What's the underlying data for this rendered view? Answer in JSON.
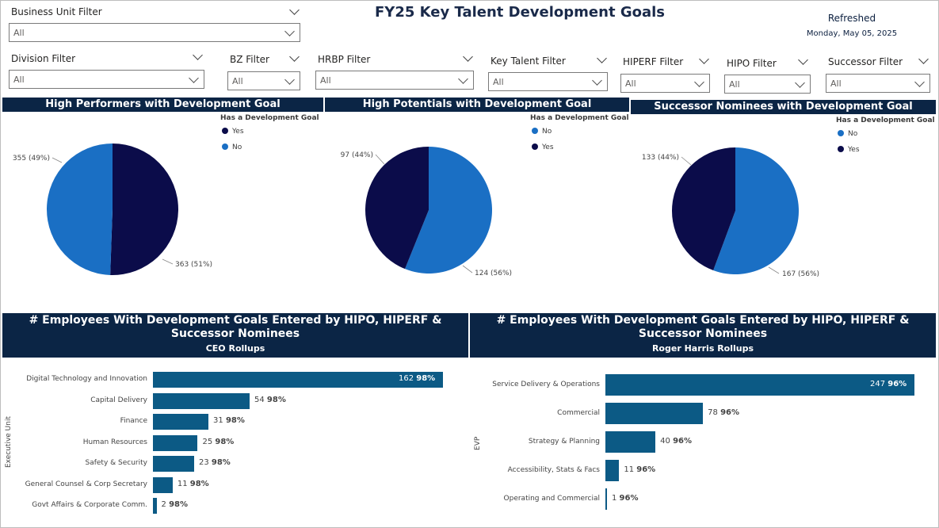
{
  "header": {
    "title": "FY25 Key Talent Development Goals",
    "refreshed_label": "Refreshed",
    "refreshed_date": "Monday, May 05, 2025"
  },
  "filters": {
    "business_unit": {
      "label": "Business Unit Filter",
      "value": "All"
    },
    "division": {
      "label": "Division Filter",
      "value": "All"
    },
    "bz": {
      "label": "BZ Filter",
      "value": "All"
    },
    "hrbp": {
      "label": "HRBP Filter",
      "value": "All"
    },
    "key_talent": {
      "label": "Key Talent Filter",
      "value": "All"
    },
    "hiperf": {
      "label": "HIPERF Filter",
      "value": "All"
    },
    "hipo": {
      "label": "HIPO Filter",
      "value": "All"
    },
    "successor": {
      "label": "Successor Filter",
      "value": "All"
    }
  },
  "colors": {
    "navy": "#0b0c4a",
    "blue": "#1a6fc4",
    "bar": "#0c5a85",
    "header_bg": "#0b2545"
  },
  "chart_data": [
    {
      "type": "pie",
      "title": "High Performers with Development Goal",
      "legend_title": "Has a Development Goal",
      "legend": [
        "Yes",
        "No"
      ],
      "slices": [
        {
          "name": "Yes",
          "value": 363,
          "label": "363 (51%)",
          "color": "#0b0c4a"
        },
        {
          "name": "No",
          "value": 355,
          "label": "355 (49%)",
          "color": "#1a6fc4"
        }
      ]
    },
    {
      "type": "pie",
      "title": "High Potentials with Development Goal",
      "legend_title": "Has a Development Goal",
      "legend": [
        "No",
        "Yes"
      ],
      "slices": [
        {
          "name": "No",
          "value": 124,
          "label": "124 (56%)",
          "color": "#1a6fc4"
        },
        {
          "name": "Yes",
          "value": 97,
          "label": "97 (44%)",
          "color": "#0b0c4a"
        }
      ]
    },
    {
      "type": "pie",
      "title": "Successor Nominees with Development Goal",
      "legend_title": "Has a Development Goal",
      "legend": [
        "No",
        "Yes"
      ],
      "slices": [
        {
          "name": "No",
          "value": 167,
          "label": "167 (56%)",
          "color": "#1a6fc4"
        },
        {
          "name": "Yes",
          "value": 133,
          "label": "133 (44%)",
          "color": "#0b0c4a"
        }
      ]
    },
    {
      "type": "bar",
      "orientation": "horizontal",
      "title": "# Employees With Development Goals Entered by HIPO, HIPERF & Successor Nominees",
      "subtitle": "CEO Rollups",
      "ylabel": "Executive Unit",
      "xlim": [
        0,
        162
      ],
      "categories": [
        "Digital Technology and Innovation",
        "Capital Delivery",
        "Finance",
        "Human Resources",
        "Safety & Security",
        "General Counsel & Corp Secretary",
        "Govt Affairs & Corporate Comm."
      ],
      "values": [
        162,
        54,
        31,
        25,
        23,
        11,
        2
      ],
      "percent_labels": [
        "98%",
        "98%",
        "98%",
        "98%",
        "98%",
        "98%",
        "98%"
      ]
    },
    {
      "type": "bar",
      "orientation": "horizontal",
      "title": "# Employees With Development Goals Entered by HIPO, HIPERF & Successor Nominees",
      "subtitle": "Roger Harris Rollups",
      "ylabel": "EVP",
      "xlim": [
        0,
        247
      ],
      "categories": [
        "Service Delivery & Operations",
        "Commercial",
        "Strategy & Planning",
        "Accessibility, Stats & Facs",
        "Operating and Commercial"
      ],
      "values": [
        247,
        78,
        40,
        11,
        1
      ],
      "percent_labels": [
        "96%",
        "96%",
        "96%",
        "96%",
        "96%"
      ]
    }
  ]
}
